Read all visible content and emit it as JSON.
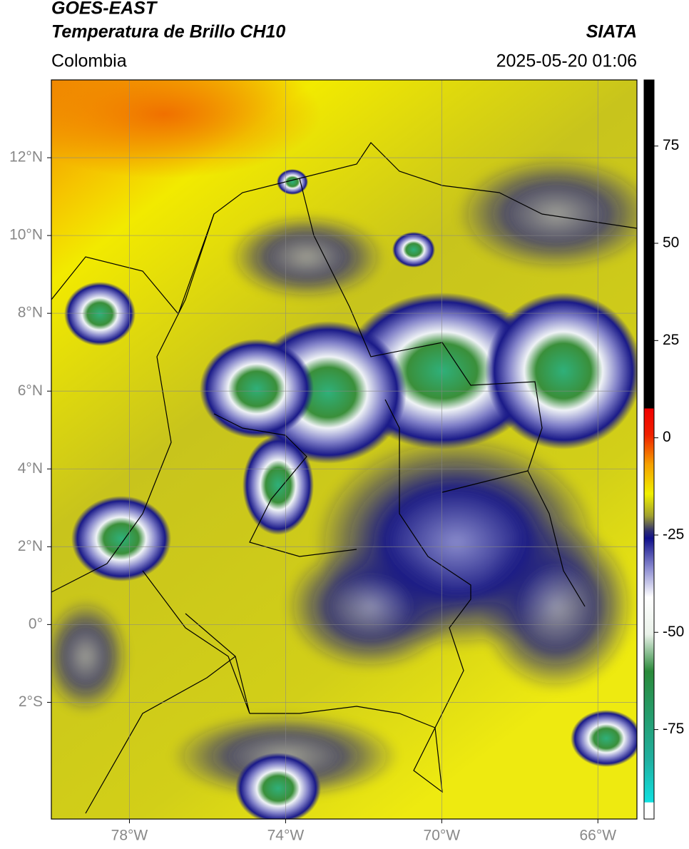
{
  "header": {
    "satellite": "GOES-EAST",
    "product": "Temperatura de Brillo CH10",
    "agency": "SIATA",
    "region": "Colombia",
    "timestamp": "2025-05-20 01:06"
  },
  "map": {
    "xlim": [
      -80,
      -65
    ],
    "ylim": [
      -5,
      14
    ],
    "xticks": [
      {
        "value": -78,
        "label": "78°W"
      },
      {
        "value": -74,
        "label": "74°W"
      },
      {
        "value": -70,
        "label": "70°W"
      },
      {
        "value": -66,
        "label": "66°W"
      }
    ],
    "yticks": [
      {
        "value": 12,
        "label": "12°N"
      },
      {
        "value": 10,
        "label": "10°N"
      },
      {
        "value": 8,
        "label": "8°N"
      },
      {
        "value": 6,
        "label": "6°N"
      },
      {
        "value": 4,
        "label": "4°N"
      },
      {
        "value": 2,
        "label": "2°N"
      },
      {
        "value": 0,
        "label": "0°"
      },
      {
        "value": -2,
        "label": "2°S"
      }
    ],
    "grid": true
  },
  "colorbar": {
    "lim": [
      -98,
      92
    ],
    "ticks": [
      75,
      50,
      25,
      0,
      -25,
      -50,
      -75
    ]
  }
}
